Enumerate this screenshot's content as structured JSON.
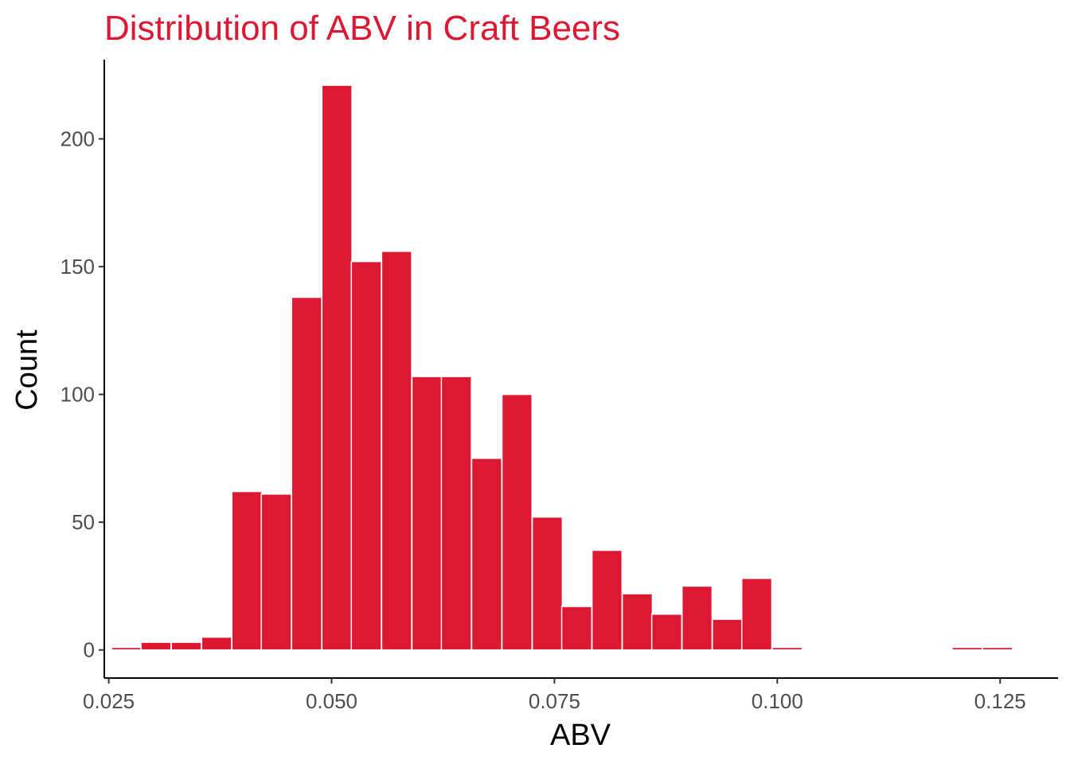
{
  "chart_data": {
    "type": "bar",
    "title": "Distribution of ABV in Craft Beers",
    "xlabel": "ABV",
    "ylabel": "Count",
    "bin_width": 0.00337,
    "xlim": [
      0.0245,
      0.1315
    ],
    "ylim": [
      -11,
      231
    ],
    "x_ticks": [
      0.025,
      0.05,
      0.075,
      0.1,
      0.125
    ],
    "x_tick_labels": [
      "0.025",
      "0.050",
      "0.075",
      "0.100",
      "0.125"
    ],
    "y_ticks": [
      0,
      50,
      100,
      150,
      200
    ],
    "y_tick_labels": [
      "0",
      "50",
      "100",
      "150",
      "200"
    ],
    "bins": [
      {
        "x": 0.027,
        "count": 1
      },
      {
        "x": 0.0303,
        "count": 3
      },
      {
        "x": 0.0337,
        "count": 3
      },
      {
        "x": 0.0371,
        "count": 5
      },
      {
        "x": 0.0405,
        "count": 62
      },
      {
        "x": 0.0438,
        "count": 61
      },
      {
        "x": 0.0472,
        "count": 138
      },
      {
        "x": 0.0506,
        "count": 221
      },
      {
        "x": 0.0539,
        "count": 152
      },
      {
        "x": 0.0573,
        "count": 156
      },
      {
        "x": 0.0607,
        "count": 107
      },
      {
        "x": 0.064,
        "count": 107
      },
      {
        "x": 0.0674,
        "count": 75
      },
      {
        "x": 0.0708,
        "count": 100
      },
      {
        "x": 0.0742,
        "count": 52
      },
      {
        "x": 0.0775,
        "count": 17
      },
      {
        "x": 0.0809,
        "count": 39
      },
      {
        "x": 0.0843,
        "count": 22
      },
      {
        "x": 0.0876,
        "count": 14
      },
      {
        "x": 0.091,
        "count": 25
      },
      {
        "x": 0.0944,
        "count": 12
      },
      {
        "x": 0.0977,
        "count": 28
      },
      {
        "x": 0.1011,
        "count": 1
      },
      {
        "x": 0.1213,
        "count": 1
      },
      {
        "x": 0.1247,
        "count": 1
      }
    ],
    "grid": false,
    "bar_color": "#DC1833",
    "title_color": "#DC1833"
  }
}
